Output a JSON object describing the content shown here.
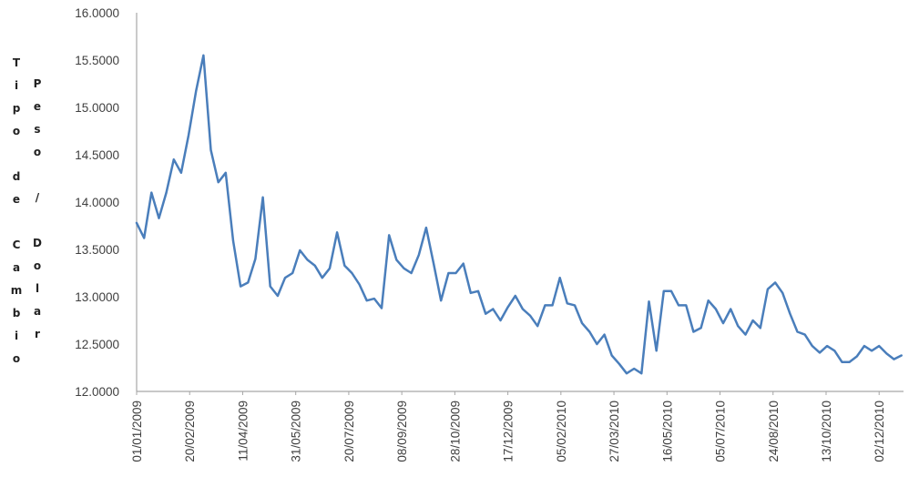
{
  "chart_data": {
    "type": "line",
    "title": "",
    "xlabel": "",
    "ylabel_parts": [
      "Tipo de Cambio",
      "Peso / Dolar"
    ],
    "ylim": [
      12.0,
      16.0
    ],
    "y_tick_step": 0.5,
    "y_tick_labels": [
      "12.0000",
      "12.5000",
      "13.0000",
      "13.5000",
      "14.0000",
      "14.5000",
      "15.0000",
      "15.5000",
      "16.0000"
    ],
    "xlim": [
      "2009-01-01",
      "2010-12-25"
    ],
    "x_tick_labels": [
      "01/01/2009",
      "20/02/2009",
      "11/04/2009",
      "31/05/2009",
      "20/07/2009",
      "08/09/2009",
      "28/10/2009",
      "17/12/2009",
      "05/02/2010",
      "27/03/2010",
      "16/05/2010",
      "05/07/2010",
      "24/08/2010",
      "13/10/2010",
      "02/12/2010"
    ],
    "grid": false,
    "legend": "none",
    "line_color": "#4a7ebb",
    "axis_color": "#a6a6a6",
    "series": [
      {
        "x": [
          "2009-01-01",
          "2009-01-08",
          "2009-01-15",
          "2009-01-22",
          "2009-01-29",
          "2009-02-05",
          "2009-02-12",
          "2009-02-19",
          "2009-02-26",
          "2009-03-05",
          "2009-03-12",
          "2009-03-19",
          "2009-03-26",
          "2009-04-02",
          "2009-04-09",
          "2009-04-16",
          "2009-04-23",
          "2009-04-30",
          "2009-05-07",
          "2009-05-14",
          "2009-05-21",
          "2009-05-28",
          "2009-06-04",
          "2009-06-11",
          "2009-06-18",
          "2009-06-25",
          "2009-07-02",
          "2009-07-09",
          "2009-07-16",
          "2009-07-23",
          "2009-07-30",
          "2009-08-06",
          "2009-08-13",
          "2009-08-20",
          "2009-08-27",
          "2009-09-03",
          "2009-09-10",
          "2009-09-17",
          "2009-09-24",
          "2009-10-01",
          "2009-10-08",
          "2009-10-15",
          "2009-10-22",
          "2009-10-29",
          "2009-11-05",
          "2009-11-12",
          "2009-11-19",
          "2009-11-26",
          "2009-12-03",
          "2009-12-10",
          "2009-12-17",
          "2009-12-24",
          "2009-12-31",
          "2010-01-07",
          "2010-01-14",
          "2010-01-21",
          "2010-01-28",
          "2010-02-04",
          "2010-02-11",
          "2010-02-18",
          "2010-02-25",
          "2010-03-04",
          "2010-03-11",
          "2010-03-18",
          "2010-03-25",
          "2010-04-01",
          "2010-04-08",
          "2010-04-15",
          "2010-04-22",
          "2010-04-29",
          "2010-05-06",
          "2010-05-13",
          "2010-05-20",
          "2010-05-27",
          "2010-06-03",
          "2010-06-10",
          "2010-06-17",
          "2010-06-24",
          "2010-07-01",
          "2010-07-08",
          "2010-07-15",
          "2010-07-22",
          "2010-07-29",
          "2010-08-05",
          "2010-08-12",
          "2010-08-19",
          "2010-08-26",
          "2010-09-02",
          "2010-09-09",
          "2010-09-16",
          "2010-09-23",
          "2010-09-30",
          "2010-10-07",
          "2010-10-14",
          "2010-10-21",
          "2010-10-28",
          "2010-11-04",
          "2010-11-11",
          "2010-11-18",
          "2010-11-25",
          "2010-12-02",
          "2010-12-09",
          "2010-12-16",
          "2010-12-23"
        ],
        "values": [
          13.78,
          13.62,
          14.1,
          13.83,
          14.1,
          14.45,
          14.31,
          14.71,
          15.17,
          15.55,
          14.55,
          14.21,
          14.31,
          13.59,
          13.11,
          13.15,
          13.4,
          14.05,
          13.11,
          13.01,
          13.2,
          13.25,
          13.49,
          13.39,
          13.33,
          13.2,
          13.3,
          13.68,
          13.33,
          13.25,
          13.13,
          12.96,
          12.98,
          12.88,
          13.65,
          13.39,
          13.3,
          13.25,
          13.44,
          13.73,
          13.35,
          12.96,
          13.25,
          13.25,
          13.35,
          13.04,
          13.06,
          12.82,
          12.87,
          12.75,
          12.89,
          13.01,
          12.87,
          12.8,
          12.69,
          12.91,
          12.91,
          13.2,
          12.93,
          12.91,
          12.72,
          12.63,
          12.5,
          12.6,
          12.38,
          12.29,
          12.19,
          12.24,
          12.19,
          12.95,
          12.43,
          13.06,
          13.06,
          12.91,
          12.91,
          12.63,
          12.67,
          12.96,
          12.87,
          12.72,
          12.87,
          12.69,
          12.6,
          12.75,
          12.67,
          13.08,
          13.15,
          13.04,
          12.82,
          12.63,
          12.6,
          12.48,
          12.41,
          12.48,
          12.43,
          12.31,
          12.31,
          12.37,
          12.48,
          12.43,
          12.48,
          12.4,
          12.34,
          12.38
        ]
      }
    ]
  }
}
